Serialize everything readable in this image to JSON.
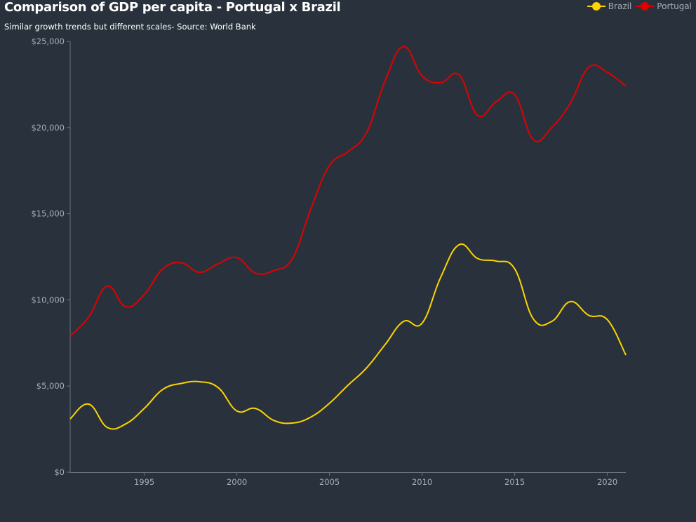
{
  "chart_data": {
    "type": "line",
    "title": "Comparison of GDP per capita - Portugal x Brazil",
    "subtitle": "Similar growth trends but different scales- Source: World Bank",
    "xlabel": "",
    "ylabel": "",
    "xlim": [
      1991,
      2021
    ],
    "ylim": [
      0,
      25000
    ],
    "x_ticks": [
      1995,
      2000,
      2005,
      2010,
      2015,
      2020
    ],
    "y_ticks": [
      0,
      5000,
      10000,
      15000,
      20000,
      25000
    ],
    "y_tick_labels": [
      "$0",
      "$5,000",
      "$10,000",
      "$15,000",
      "$20,000",
      "$25,000"
    ],
    "grid": false,
    "legend_position": "top-right",
    "x": [
      1991,
      1992,
      1993,
      1994,
      1995,
      1996,
      1997,
      1998,
      1999,
      2000,
      2001,
      2002,
      2003,
      2004,
      2005,
      2006,
      2007,
      2008,
      2009,
      2010,
      2011,
      2012,
      2013,
      2014,
      2015,
      2016,
      2017,
      2018,
      2019,
      2020,
      2021
    ],
    "series": [
      {
        "name": "Brazil",
        "color": "#fdd400",
        "values": [
          3100,
          3950,
          2600,
          2800,
          3700,
          4800,
          5150,
          5250,
          4900,
          3550,
          3700,
          3000,
          2850,
          3200,
          4000,
          5050,
          6050,
          7400,
          8750,
          8650,
          11300,
          13200,
          12400,
          12250,
          11800,
          8900,
          8750,
          9900,
          9100,
          8850,
          6800
        ]
      },
      {
        "name": "Portugal",
        "color": "#e00000",
        "values": [
          7900,
          9000,
          10800,
          9600,
          10300,
          11800,
          12150,
          11600,
          12100,
          12450,
          11550,
          11700,
          12400,
          15300,
          17800,
          18600,
          19700,
          22700,
          24700,
          23000,
          22600,
          23050,
          20700,
          21500,
          21900,
          19300,
          20000,
          21400,
          23500,
          23200,
          22400
        ]
      }
    ]
  }
}
